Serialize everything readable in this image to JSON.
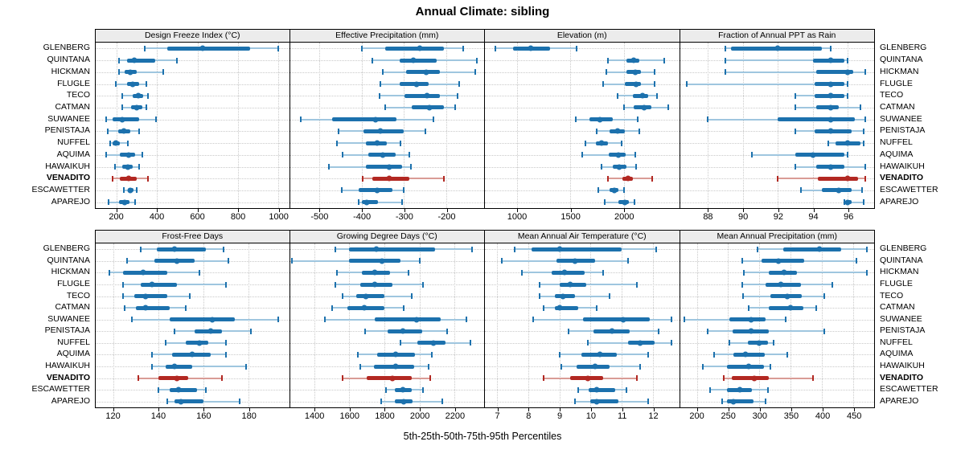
{
  "title": "Annual Climate: sibling",
  "caption": "5th-25th-50th-75th-95th Percentiles",
  "colors": {
    "normal": "#1c71ad",
    "normal_light": "#9fc6df",
    "highlight": "#b22822",
    "highlight_light": "#d99c96",
    "panel_header_bg": "#ececec",
    "grid": "#c9c9c9",
    "border": "#000000"
  },
  "chart_data": {
    "type": "dot-whisker-lattice",
    "percentiles": [
      5,
      25,
      50,
      75,
      95
    ],
    "layout": {
      "rows": 2,
      "cols": 4,
      "grid": "dotted",
      "legend": "none"
    },
    "sites": [
      "GLENBERG",
      "QUINTANA",
      "HICKMAN",
      "FLUGLE",
      "TECO",
      "CATMAN",
      "SUWANEE",
      "PENISTAJA",
      "NUFFEL",
      "AQUIMA",
      "HAWAIKUH",
      "VENADITO",
      "ESCAWETTER",
      "APAREJO"
    ],
    "highlight_site": "VENADITO",
    "panels": [
      {
        "title": "Design Freeze Index (°C)",
        "xlim": [
          95,
          1055
        ],
        "ticks": [
          200,
          400,
          600,
          800,
          1000
        ],
        "values": [
          [
            340,
            450,
            625,
            860,
            1000
          ],
          [
            210,
            250,
            285,
            390,
            500
          ],
          [
            210,
            240,
            265,
            300,
            430
          ],
          [
            195,
            250,
            280,
            310,
            345
          ],
          [
            225,
            280,
            305,
            330,
            355
          ],
          [
            225,
            270,
            300,
            325,
            345
          ],
          [
            145,
            180,
            225,
            310,
            395
          ],
          [
            155,
            205,
            235,
            265,
            310
          ],
          [
            165,
            180,
            195,
            215,
            255
          ],
          [
            145,
            215,
            260,
            290,
            325
          ],
          [
            190,
            225,
            255,
            280,
            310
          ],
          [
            180,
            215,
            260,
            300,
            355
          ],
          [
            235,
            255,
            268,
            282,
            300
          ],
          [
            160,
            210,
            240,
            262,
            290
          ]
        ]
      },
      {
        "title": "Effective Precipitation (mm)",
        "xlim": [
          -570,
          -110
        ],
        "ticks": [
          -500,
          -400,
          -300,
          -200
        ],
        "values": [
          [
            -400,
            -345,
            -262,
            -205,
            -160
          ],
          [
            -375,
            -310,
            -278,
            -222,
            -128
          ],
          [
            -350,
            -295,
            -248,
            -215,
            -130
          ],
          [
            -355,
            -310,
            -270,
            -242,
            -170
          ],
          [
            -357,
            -298,
            -245,
            -215,
            -172
          ],
          [
            -345,
            -282,
            -240,
            -205,
            -178
          ],
          [
            -545,
            -470,
            -368,
            -318,
            -230
          ],
          [
            -455,
            -395,
            -355,
            -300,
            -250
          ],
          [
            -458,
            -390,
            -363,
            -340,
            -308
          ],
          [
            -445,
            -385,
            -350,
            -320,
            -287
          ],
          [
            -478,
            -390,
            -335,
            -305,
            -283
          ],
          [
            -398,
            -375,
            -335,
            -288,
            -205
          ],
          [
            -448,
            -407,
            -364,
            -328,
            -300
          ],
          [
            -407,
            -400,
            -389,
            -362,
            -304
          ]
        ]
      },
      {
        "title": "Elevation (m)",
        "xlim": [
          700,
          2520
        ],
        "ticks": [
          1000,
          1500,
          2000
        ],
        "values": [
          [
            800,
            960,
            1130,
            1310,
            1560
          ],
          [
            1850,
            2030,
            2095,
            2150,
            2380
          ],
          [
            1840,
            2030,
            2110,
            2160,
            2290
          ],
          [
            1810,
            2010,
            2115,
            2160,
            2290
          ],
          [
            1940,
            2090,
            2175,
            2230,
            2310
          ],
          [
            2000,
            2095,
            2195,
            2260,
            2420
          ],
          [
            1550,
            1680,
            1780,
            1900,
            2130
          ],
          [
            1750,
            1870,
            1945,
            2010,
            2150
          ],
          [
            1640,
            1740,
            1795,
            1850,
            1980
          ],
          [
            1610,
            1860,
            1950,
            2020,
            2110
          ],
          [
            1790,
            1900,
            1960,
            2030,
            2120
          ],
          [
            1850,
            1990,
            2040,
            2090,
            2270
          ],
          [
            1760,
            1870,
            1915,
            1950,
            2000
          ],
          [
            1820,
            1950,
            2010,
            2050,
            2100
          ]
        ]
      },
      {
        "title": "Fraction of Annual PPT as Rain",
        "xlim": [
          86.4,
          97.5
        ],
        "ticks": [
          88,
          90,
          92,
          94,
          96
        ],
        "values": [
          [
            89,
            89.3,
            92,
            94.5,
            95
          ],
          [
            89,
            94,
            95,
            95.8,
            96
          ],
          [
            89,
            94.2,
            96,
            96.3,
            97
          ],
          [
            86.8,
            94.1,
            95,
            95.8,
            96
          ],
          [
            93,
            94.1,
            95,
            95.8,
            96
          ],
          [
            93,
            94.2,
            95,
            95.5,
            96.7
          ],
          [
            88,
            92,
            95,
            96.4,
            97
          ],
          [
            93,
            94.1,
            95,
            96.2,
            96.9
          ],
          [
            94.9,
            95.3,
            96,
            96.7,
            96.9
          ],
          [
            90.5,
            93,
            94,
            95.8,
            96
          ],
          [
            93,
            94.2,
            95,
            95.8,
            97
          ],
          [
            92,
            94.3,
            96,
            96.6,
            97
          ],
          [
            93.3,
            94.5,
            95.5,
            96.2,
            96.8
          ],
          [
            95.8,
            95.9,
            96,
            96.2,
            96.9
          ]
        ]
      },
      {
        "title": "Frost-Free Days",
        "xlim": [
          112,
          198
        ],
        "ticks": [
          120,
          140,
          160,
          180
        ],
        "values": [
          [
            132,
            139,
            147,
            161,
            169
          ],
          [
            126,
            138,
            148,
            156,
            171
          ],
          [
            118,
            124,
            133,
            144,
            158
          ],
          [
            124,
            132,
            137,
            148,
            170
          ],
          [
            124,
            129,
            134,
            144,
            154
          ],
          [
            125,
            130,
            134,
            145,
            152
          ],
          [
            128,
            145,
            164,
            174,
            193
          ],
          [
            147,
            156,
            163,
            168,
            181
          ],
          [
            143,
            152,
            158,
            162,
            170
          ],
          [
            137,
            146,
            155,
            163,
            170
          ],
          [
            137,
            143,
            147,
            155,
            179
          ],
          [
            131,
            140,
            148,
            153,
            168
          ],
          [
            140,
            145,
            149,
            157,
            161
          ],
          [
            144,
            147,
            150,
            160,
            176
          ]
        ]
      },
      {
        "title": "Growing Degree Days (°C)",
        "xlim": [
          1260,
          2370
        ],
        "ticks": [
          1400,
          1600,
          1800,
          2000,
          2200
        ],
        "values": [
          [
            1520,
            1600,
            1755,
            2090,
            2300
          ],
          [
            1270,
            1600,
            1785,
            1890,
            2000
          ],
          [
            1530,
            1670,
            1745,
            1830,
            1940
          ],
          [
            1520,
            1660,
            1745,
            1845,
            2020
          ],
          [
            1560,
            1640,
            1695,
            1800,
            1955
          ],
          [
            1500,
            1590,
            1685,
            1800,
            1910
          ],
          [
            1460,
            1745,
            1985,
            2120,
            2270
          ],
          [
            1690,
            1820,
            1905,
            2015,
            2160
          ],
          [
            1890,
            1990,
            2080,
            2150,
            2290
          ],
          [
            1650,
            1760,
            1865,
            1975,
            2070
          ],
          [
            1660,
            1740,
            1865,
            1970,
            2055
          ],
          [
            1560,
            1700,
            1845,
            1955,
            2060
          ],
          [
            1810,
            1860,
            1905,
            1955,
            2020
          ],
          [
            1780,
            1860,
            1910,
            1960,
            2130
          ]
        ]
      },
      {
        "title": "Mean Annual Air Temperature (°C)",
        "xlim": [
          6.6,
          12.85
        ],
        "ticks": [
          7,
          8,
          9,
          10,
          11,
          12
        ],
        "values": [
          [
            7.55,
            8.1,
            9.0,
            11.0,
            12.1
          ],
          [
            7.15,
            8.9,
            9.5,
            10.15,
            11.2
          ],
          [
            7.8,
            8.75,
            9.15,
            9.8,
            10.4
          ],
          [
            8.35,
            9.0,
            9.35,
            9.85,
            11.5
          ],
          [
            8.35,
            8.85,
            9.1,
            9.5,
            10.6
          ],
          [
            8.5,
            8.85,
            9.0,
            9.6,
            10.2
          ],
          [
            8.15,
            9.75,
            11.05,
            11.9,
            12.6
          ],
          [
            9.3,
            10.1,
            10.7,
            11.25,
            12.2
          ],
          [
            9.9,
            11.2,
            11.6,
            12.05,
            12.6
          ],
          [
            9.0,
            9.7,
            10.3,
            10.85,
            11.85
          ],
          [
            9.05,
            9.55,
            10.15,
            10.6,
            11.6
          ],
          [
            8.5,
            9.35,
            9.9,
            10.4,
            11.5
          ],
          [
            9.6,
            9.95,
            10.2,
            10.8,
            11.15
          ],
          [
            9.5,
            10.0,
            10.2,
            10.9,
            11.85
          ]
        ]
      },
      {
        "title": "Mean Annual Precipitation (mm)",
        "xlim": [
          173,
          483
        ],
        "ticks": [
          200,
          250,
          300,
          350,
          400,
          450
        ],
        "values": [
          [
            297,
            338,
            396,
            430,
            472
          ],
          [
            272,
            303,
            330,
            371,
            455
          ],
          [
            275,
            315,
            339,
            360,
            472
          ],
          [
            273,
            310,
            334,
            366,
            416
          ],
          [
            274,
            318,
            345,
            368,
            403
          ],
          [
            283,
            315,
            349,
            370,
            390
          ],
          [
            180,
            252,
            287,
            310,
            342
          ],
          [
            217,
            257,
            286,
            315,
            404
          ],
          [
            252,
            282,
            300,
            313,
            323
          ],
          [
            228,
            258,
            277,
            308,
            345
          ],
          [
            209,
            248,
            283,
            307,
            318
          ],
          [
            243,
            256,
            292,
            315,
            386
          ],
          [
            221,
            248,
            268,
            288,
            313
          ],
          [
            240,
            248,
            258,
            290,
            310
          ]
        ]
      }
    ]
  }
}
